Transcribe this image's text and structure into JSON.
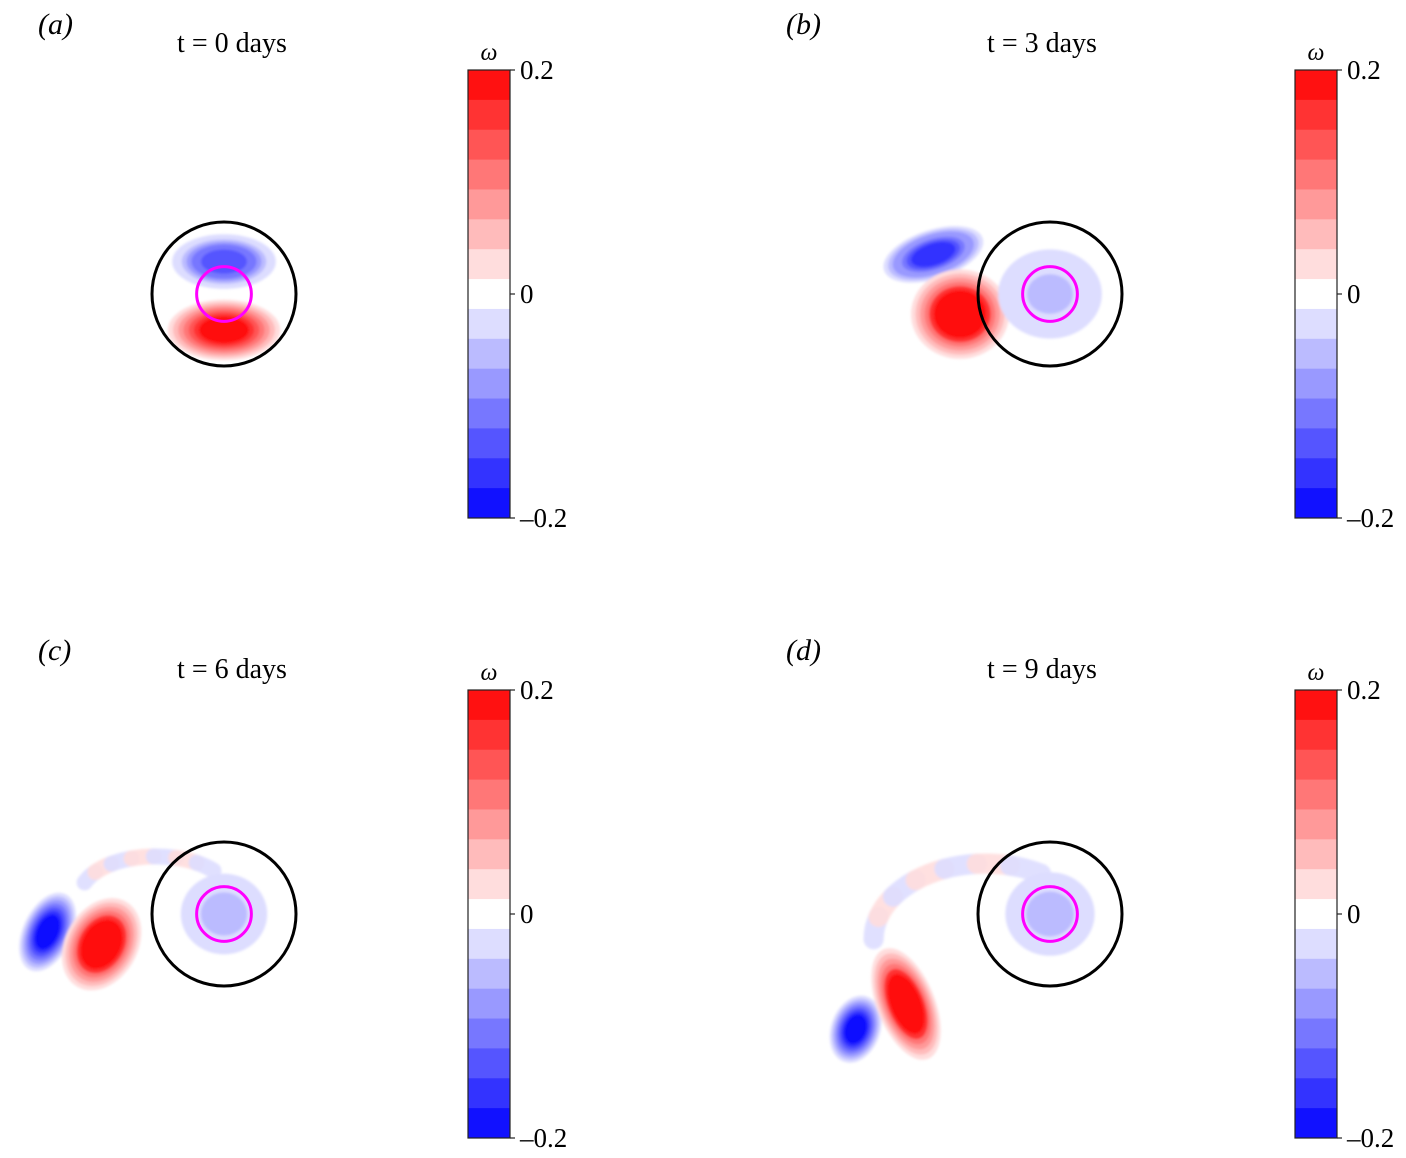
{
  "chart_data": [
    {
      "type": "heatmap",
      "panel_label": "(a)",
      "title": "t = 0 days",
      "colorbar": {
        "label": "ω",
        "vmin": -0.2,
        "vmax": 0.2,
        "levels": 15,
        "ticks": [
          "0.2",
          "0",
          "–0.2"
        ],
        "cmap": [
          "#0000ff",
          "#ffffff",
          "#ff0000"
        ]
      },
      "vortices": [
        {
          "sign": "neg",
          "cx": 0,
          "cy": -0.45,
          "rx": 0.72,
          "ry": 0.38,
          "rot": 0,
          "strength": 0.16
        },
        {
          "sign": "pos",
          "cx": 0,
          "cy": 0.5,
          "rx": 0.78,
          "ry": 0.42,
          "rot": 0,
          "strength": 0.22
        }
      ],
      "filaments": [],
      "circles": {
        "outer_center": [
          0,
          0
        ],
        "outer_radius": 1.0,
        "inner_center": [
          0,
          0
        ],
        "inner_radius": 0.38
      }
    },
    {
      "type": "heatmap",
      "panel_label": "(b)",
      "title": "t = 3 days",
      "colorbar": {
        "label": "ω",
        "vmin": -0.2,
        "vmax": 0.2,
        "levels": 15,
        "ticks": [
          "0.2",
          "0",
          "–0.2"
        ],
        "cmap": [
          "#0000ff",
          "#ffffff",
          "#ff0000"
        ]
      },
      "vortices": [
        {
          "sign": "neg",
          "cx": -1.62,
          "cy": -0.55,
          "rx": 0.72,
          "ry": 0.34,
          "rot": -18,
          "strength": 0.18
        },
        {
          "sign": "pos",
          "cx": -1.25,
          "cy": 0.28,
          "rx": 0.68,
          "ry": 0.62,
          "rot": 0,
          "strength": 0.24
        },
        {
          "sign": "neg",
          "cx": 0.0,
          "cy": 0.0,
          "rx": 0.72,
          "ry": 0.62,
          "rot": 0,
          "strength": 0.05
        }
      ],
      "filaments": [],
      "circles": {
        "outer_center": [
          0,
          0
        ],
        "outer_radius": 1.0,
        "inner_center": [
          0,
          0
        ],
        "inner_radius": 0.38
      }
    },
    {
      "type": "heatmap",
      "panel_label": "(c)",
      "title": "t = 6 days",
      "colorbar": {
        "label": "ω",
        "vmin": -0.2,
        "vmax": 0.2,
        "levels": 15,
        "ticks": [
          "0.2",
          "0",
          "–0.2"
        ],
        "cmap": [
          "#0000ff",
          "#ffffff",
          "#ff0000"
        ]
      },
      "vortices": [
        {
          "sign": "neg",
          "cx": -2.45,
          "cy": 0.25,
          "rx": 0.34,
          "ry": 0.58,
          "rot": 25,
          "strength": 0.2
        },
        {
          "sign": "pos",
          "cx": -1.7,
          "cy": 0.42,
          "rx": 0.5,
          "ry": 0.68,
          "rot": 30,
          "strength": 0.24
        },
        {
          "sign": "neg",
          "cx": 0.0,
          "cy": 0.0,
          "rx": 0.6,
          "ry": 0.56,
          "rot": 0,
          "strength": 0.06
        }
      ],
      "filaments": [
        {
          "cx": -0.95,
          "cy": -0.25,
          "rx": 1.05,
          "ry": 0.55,
          "start": 200,
          "end": 320,
          "w": 0.22
        }
      ],
      "circles": {
        "outer_center": [
          0,
          0
        ],
        "outer_radius": 1.0,
        "inner_center": [
          0,
          0
        ],
        "inner_radius": 0.38
      }
    },
    {
      "type": "heatmap",
      "panel_label": "(d)",
      "title": "t = 9 days",
      "colorbar": {
        "label": "ω",
        "vmin": -0.2,
        "vmax": 0.2,
        "levels": 15,
        "ticks": [
          "0.2",
          "0",
          "–0.2"
        ],
        "cmap": [
          "#0000ff",
          "#ffffff",
          "#ff0000"
        ]
      },
      "vortices": [
        {
          "sign": "neg",
          "cx": -2.7,
          "cy": 1.6,
          "rx": 0.34,
          "ry": 0.48,
          "rot": 20,
          "strength": 0.2
        },
        {
          "sign": "pos",
          "cx": -2.0,
          "cy": 1.25,
          "rx": 0.4,
          "ry": 0.82,
          "rot": -22,
          "strength": 0.24
        },
        {
          "sign": "neg",
          "cx": 0.0,
          "cy": 0.0,
          "rx": 0.62,
          "ry": 0.58,
          "rot": 0,
          "strength": 0.06
        }
      ],
      "filaments": [
        {
          "cx": -0.9,
          "cy": 0.35,
          "rx": 1.55,
          "ry": 1.05,
          "start": 180,
          "end": 300,
          "w": 0.28
        }
      ],
      "circles": {
        "outer_center": [
          0,
          0
        ],
        "outer_radius": 1.0,
        "inner_center": [
          0,
          0
        ],
        "inner_radius": 0.38
      }
    }
  ]
}
